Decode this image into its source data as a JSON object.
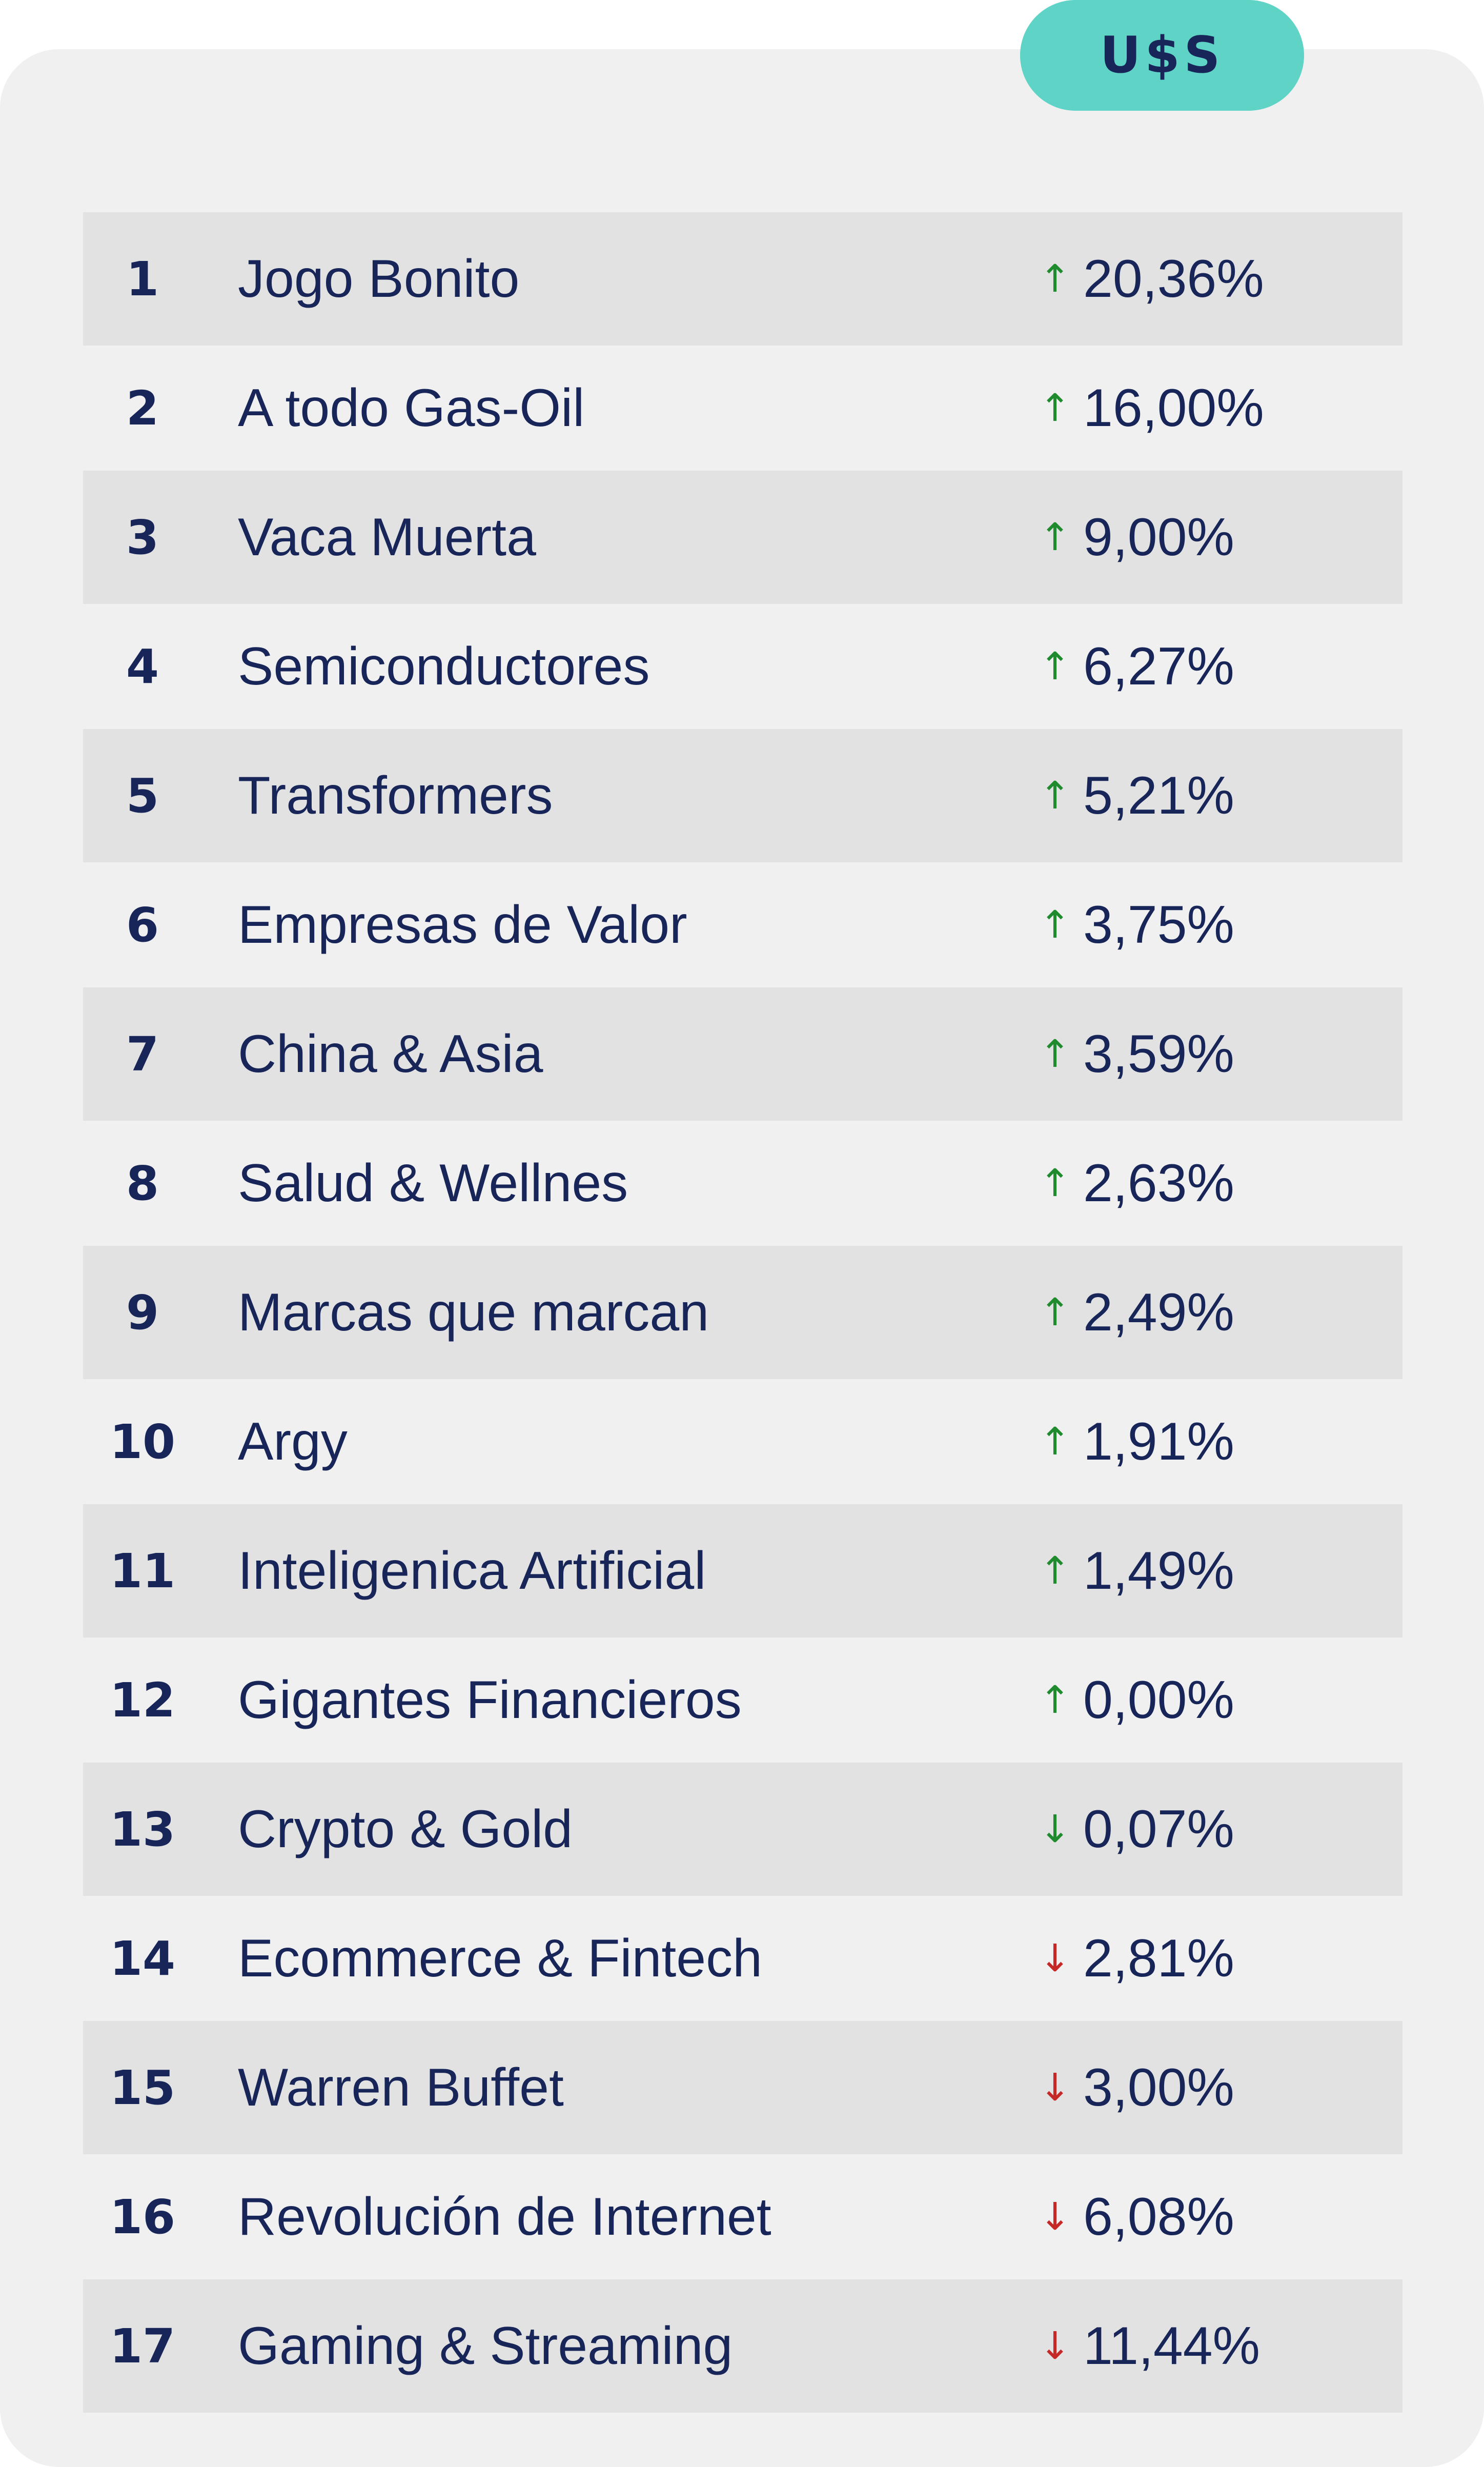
{
  "currency_label": "U$S",
  "rows": [
    {
      "rank": "1",
      "name": "Jogo Bonito",
      "direction": "up",
      "arrow": "↑",
      "value": "20,36%"
    },
    {
      "rank": "2",
      "name": "A todo Gas-Oil",
      "direction": "up",
      "arrow": "↑",
      "value": "16,00%"
    },
    {
      "rank": "3",
      "name": "Vaca Muerta",
      "direction": "up",
      "arrow": "↑",
      "value": "9,00%"
    },
    {
      "rank": "4",
      "name": "Semiconductores",
      "direction": "up",
      "arrow": "↑",
      "value": "6,27%"
    },
    {
      "rank": "5",
      "name": "Transformers",
      "direction": "up",
      "arrow": "↑",
      "value": "5,21%"
    },
    {
      "rank": "6",
      "name": "Empresas de Valor",
      "direction": "up",
      "arrow": "↑",
      "value": "3,75%"
    },
    {
      "rank": "7",
      "name": "China & Asia",
      "direction": "up",
      "arrow": "↑",
      "value": "3,59%"
    },
    {
      "rank": "8",
      "name": "Salud & Wellnes",
      "direction": "up",
      "arrow": "↑",
      "value": "2,63%"
    },
    {
      "rank": "9",
      "name": "Marcas que marcan",
      "direction": "up",
      "arrow": "↑",
      "value": "2,49%"
    },
    {
      "rank": "10",
      "name": "Argy",
      "direction": "up",
      "arrow": "↑",
      "value": "1,91%"
    },
    {
      "rank": "11",
      "name": "Inteligenica Artificial",
      "direction": "up",
      "arrow": "↑",
      "value": "1,49%"
    },
    {
      "rank": "12",
      "name": "Gigantes Financieros",
      "direction": "up",
      "arrow": "↑",
      "value": "0,00%"
    },
    {
      "rank": "13",
      "name": "Crypto & Gold",
      "direction": "down-green",
      "arrow": "↓",
      "value": "0,07%"
    },
    {
      "rank": "14",
      "name": "Ecommerce & Fintech",
      "direction": "down",
      "arrow": "↓",
      "value": "2,81%"
    },
    {
      "rank": "15",
      "name": "Warren Buffet",
      "direction": "down",
      "arrow": "↓",
      "value": "3,00%"
    },
    {
      "rank": "16",
      "name": "Revolución de Internet",
      "direction": "down",
      "arrow": "↓",
      "value": "6,08%"
    },
    {
      "rank": "17",
      "name": "Gaming & Streaming",
      "direction": "down",
      "arrow": "↓",
      "value": "11,44%"
    }
  ],
  "colors": {
    "card_background": "#f0f0f0",
    "row_shade": "#e2e2e2",
    "text": "#172558",
    "pill": "#5ed3c6",
    "arrow_up": "#1f8a2e",
    "arrow_down": "#c62828"
  }
}
